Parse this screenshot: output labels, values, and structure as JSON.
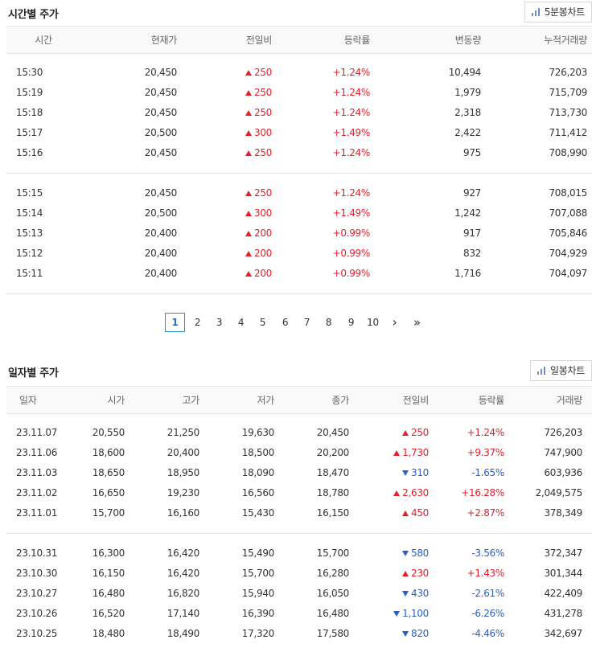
{
  "intraday": {
    "title": "시간별 주가",
    "chart_button": "5분봉차트",
    "headers": [
      "시간",
      "현재가",
      "전일비",
      "등락률",
      "변동량",
      "누적거래량"
    ],
    "groups": [
      [
        {
          "time": "15:30",
          "price": "20,450",
          "dir": "up",
          "change": "250",
          "rate": "+1.24%",
          "vol": "10,494",
          "cum": "726,203"
        },
        {
          "time": "15:19",
          "price": "20,450",
          "dir": "up",
          "change": "250",
          "rate": "+1.24%",
          "vol": "1,979",
          "cum": "715,709"
        },
        {
          "time": "15:18",
          "price": "20,450",
          "dir": "up",
          "change": "250",
          "rate": "+1.24%",
          "vol": "2,318",
          "cum": "713,730"
        },
        {
          "time": "15:17",
          "price": "20,500",
          "dir": "up",
          "change": "300",
          "rate": "+1.49%",
          "vol": "2,422",
          "cum": "711,412"
        },
        {
          "time": "15:16",
          "price": "20,450",
          "dir": "up",
          "change": "250",
          "rate": "+1.24%",
          "vol": "975",
          "cum": "708,990"
        }
      ],
      [
        {
          "time": "15:15",
          "price": "20,450",
          "dir": "up",
          "change": "250",
          "rate": "+1.24%",
          "vol": "927",
          "cum": "708,015"
        },
        {
          "time": "15:14",
          "price": "20,500",
          "dir": "up",
          "change": "300",
          "rate": "+1.49%",
          "vol": "1,242",
          "cum": "707,088"
        },
        {
          "time": "15:13",
          "price": "20,400",
          "dir": "up",
          "change": "200",
          "rate": "+0.99%",
          "vol": "917",
          "cum": "705,846"
        },
        {
          "time": "15:12",
          "price": "20,400",
          "dir": "up",
          "change": "200",
          "rate": "+0.99%",
          "vol": "832",
          "cum": "704,929"
        },
        {
          "time": "15:11",
          "price": "20,400",
          "dir": "up",
          "change": "200",
          "rate": "+0.99%",
          "vol": "1,716",
          "cum": "704,097"
        }
      ]
    ]
  },
  "pagination": {
    "pages": [
      "1",
      "2",
      "3",
      "4",
      "5",
      "6",
      "7",
      "8",
      "9",
      "10"
    ],
    "current": "1",
    "next": "›",
    "last": "»"
  },
  "daily": {
    "title": "일자별 주가",
    "chart_button": "일봉차트",
    "headers": [
      "일자",
      "시가",
      "고가",
      "저가",
      "종가",
      "전일비",
      "등락률",
      "거래량"
    ],
    "groups": [
      [
        {
          "date": "23.11.07",
          "open": "20,550",
          "high": "21,250",
          "low": "19,630",
          "close": "20,450",
          "dir": "up",
          "change": "250",
          "rate": "+1.24%",
          "vol": "726,203"
        },
        {
          "date": "23.11.06",
          "open": "18,600",
          "high": "20,400",
          "low": "18,500",
          "close": "20,200",
          "dir": "up",
          "change": "1,730",
          "rate": "+9.37%",
          "vol": "747,900"
        },
        {
          "date": "23.11.03",
          "open": "18,650",
          "high": "18,950",
          "low": "18,090",
          "close": "18,470",
          "dir": "down",
          "change": "310",
          "rate": "-1.65%",
          "vol": "603,936"
        },
        {
          "date": "23.11.02",
          "open": "16,650",
          "high": "19,230",
          "low": "16,560",
          "close": "18,780",
          "dir": "up",
          "change": "2,630",
          "rate": "+16.28%",
          "vol": "2,049,575"
        },
        {
          "date": "23.11.01",
          "open": "15,700",
          "high": "16,160",
          "low": "15,430",
          "close": "16,150",
          "dir": "up",
          "change": "450",
          "rate": "+2.87%",
          "vol": "378,349"
        }
      ],
      [
        {
          "date": "23.10.31",
          "open": "16,300",
          "high": "16,420",
          "low": "15,490",
          "close": "15,700",
          "dir": "down",
          "change": "580",
          "rate": "-3.56%",
          "vol": "372,347"
        },
        {
          "date": "23.10.30",
          "open": "16,150",
          "high": "16,420",
          "low": "15,700",
          "close": "16,280",
          "dir": "up",
          "change": "230",
          "rate": "+1.43%",
          "vol": "301,344"
        },
        {
          "date": "23.10.27",
          "open": "16,480",
          "high": "16,820",
          "low": "15,940",
          "close": "16,050",
          "dir": "down",
          "change": "430",
          "rate": "-2.61%",
          "vol": "422,409"
        },
        {
          "date": "23.10.26",
          "open": "16,520",
          "high": "17,140",
          "low": "16,390",
          "close": "16,480",
          "dir": "down",
          "change": "1,100",
          "rate": "-6.26%",
          "vol": "431,278"
        },
        {
          "date": "23.10.25",
          "open": "18,480",
          "high": "18,490",
          "low": "17,320",
          "close": "17,580",
          "dir": "down",
          "change": "820",
          "rate": "-4.46%",
          "vol": "342,697"
        }
      ]
    ]
  },
  "colors": {
    "up": "#e3202b",
    "down": "#2a5fc5",
    "accent": "#2a8fc9"
  },
  "icons": {
    "chart": "bar-chart-icon",
    "up": "triangle-up-icon",
    "down": "triangle-down-icon"
  }
}
